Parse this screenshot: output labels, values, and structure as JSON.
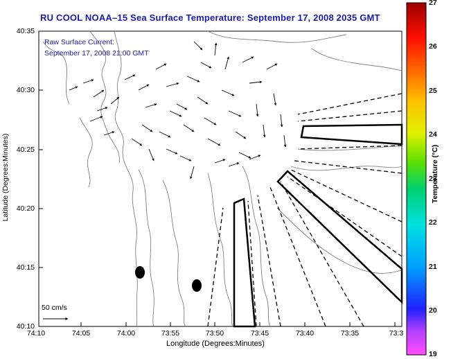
{
  "title": "RU COOL  NOAA–15  Sea Surface Temperature:  September 17, 2008 2035 GMT",
  "overlay": {
    "line1": "Raw Surface Current:",
    "line2": "September 17, 2008 21:00 GMT"
  },
  "scale_label": "50 cm/s",
  "axes": {
    "xlabel": "Longitude (Degrees:Minutes)",
    "ylabel": "Latitude (Degrees:Minutes)",
    "x_ticks": [
      "74:10",
      "74:05",
      "74:00",
      "73:55",
      "73:50",
      "73:45",
      "73:40",
      "73:35",
      "73:3"
    ],
    "y_ticks": [
      "40:35",
      "40:30",
      "40:25",
      "40:20",
      "40:15",
      "40:10"
    ]
  },
  "colorbar": {
    "label": "Temperature (°C)",
    "ticks": [
      "27",
      "26",
      "25",
      "24",
      "23",
      "22",
      "21",
      "20",
      "19"
    ],
    "range": [
      19,
      27
    ]
  }
}
